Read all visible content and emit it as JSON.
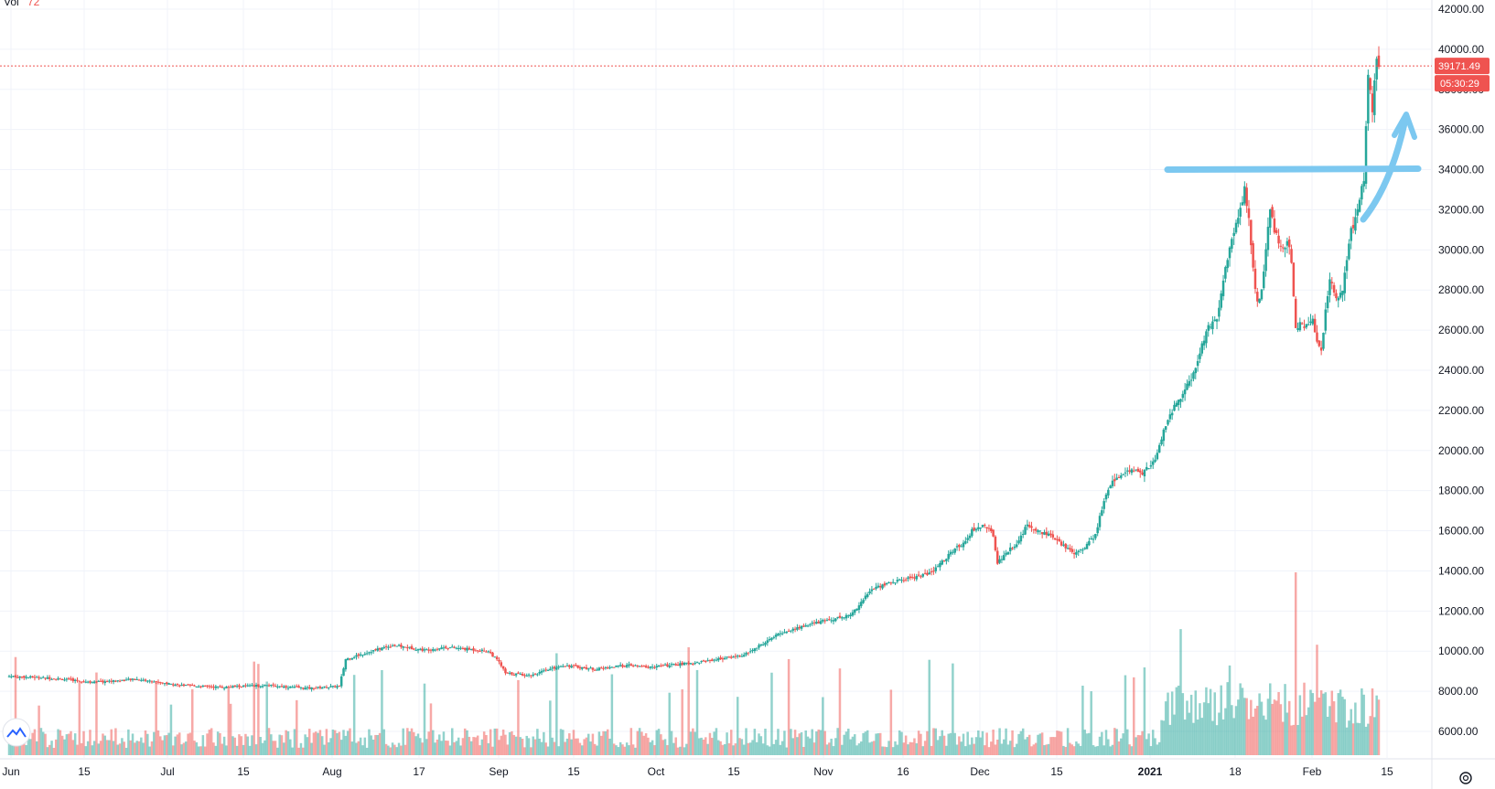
{
  "header": {
    "vol_label": "Vol",
    "vol_value": "72"
  },
  "last_price": {
    "price": "39171.49",
    "countdown": "05:30:29",
    "value": 39171.49
  },
  "colors": {
    "up": "#26a69a",
    "down": "#ef5350",
    "grid": "#f0f3fa",
    "annotation": "#7cc8f0",
    "price_line": "#ef5350"
  },
  "x_ticks": [
    "Jun",
    "15",
    "Jul",
    "15",
    "Aug",
    "17",
    "Sep",
    "15",
    "Oct",
    "15",
    "Nov",
    "16",
    "Dec",
    "15",
    "2021",
    "18",
    "Feb",
    "15"
  ],
  "chart_data": {
    "type": "candlestick",
    "y_ticks": [
      "42000.00",
      "40000.00",
      "38000.00",
      "36000.00",
      "34000.00",
      "32000.00",
      "30000.00",
      "28000.00",
      "26000.00",
      "24000.00",
      "22000.00",
      "20000.00",
      "18000.00",
      "16000.00",
      "14000.00",
      "12000.00",
      "10000.00",
      "8000.00",
      "6000.00"
    ],
    "ylim": [
      5000,
      42500
    ],
    "x_range": [
      "Jun",
      "15"
    ],
    "grid": true,
    "close_keypoints": [
      [
        0,
        8750
      ],
      [
        20,
        8650
      ],
      [
        40,
        8450
      ],
      [
        60,
        8600
      ],
      [
        80,
        8300
      ],
      [
        100,
        8200
      ],
      [
        120,
        8300
      ],
      [
        140,
        8150
      ],
      [
        155,
        8250
      ],
      [
        158,
        9600
      ],
      [
        170,
        10000
      ],
      [
        180,
        10300
      ],
      [
        195,
        10050
      ],
      [
        205,
        10200
      ],
      [
        215,
        10100
      ],
      [
        225,
        10000
      ],
      [
        230,
        9450
      ],
      [
        233,
        8900
      ],
      [
        245,
        8800
      ],
      [
        260,
        9300
      ],
      [
        275,
        9100
      ],
      [
        290,
        9300
      ],
      [
        300,
        9200
      ],
      [
        320,
        9400
      ],
      [
        345,
        9800
      ],
      [
        362,
        10900
      ],
      [
        378,
        11400
      ],
      [
        395,
        11800
      ],
      [
        405,
        13100
      ],
      [
        413,
        13400
      ],
      [
        433,
        13900
      ],
      [
        442,
        14900
      ],
      [
        448,
        15400
      ],
      [
        452,
        16000
      ],
      [
        458,
        16300
      ],
      [
        462,
        15800
      ],
      [
        464,
        14400
      ],
      [
        468,
        14900
      ],
      [
        474,
        15500
      ],
      [
        478,
        16300
      ],
      [
        483,
        16000
      ],
      [
        488,
        15800
      ],
      [
        493,
        15400
      ],
      [
        500,
        14900
      ],
      [
        505,
        15200
      ],
      [
        510,
        15800
      ],
      [
        514,
        17500
      ],
      [
        518,
        18500
      ],
      [
        522,
        18800
      ],
      [
        528,
        19000
      ],
      [
        532,
        18900
      ],
      [
        538,
        19500
      ],
      [
        542,
        21000
      ],
      [
        546,
        22000
      ],
      [
        552,
        23000
      ],
      [
        557,
        24000
      ],
      [
        562,
        26000
      ],
      [
        567,
        26500
      ],
      [
        571,
        29000
      ],
      [
        575,
        31000
      ],
      [
        578,
        32000
      ],
      [
        580,
        33000
      ],
      [
        582,
        31500
      ],
      [
        584,
        29000
      ],
      [
        586,
        27300
      ],
      [
        588,
        28000
      ],
      [
        590,
        30000
      ],
      [
        592,
        32000
      ],
      [
        594,
        31000
      ],
      [
        596,
        30500
      ],
      [
        598,
        30000
      ],
      [
        600,
        30500
      ],
      [
        602,
        29500
      ],
      [
        604,
        26000
      ],
      [
        606,
        26500
      ],
      [
        608,
        26000
      ],
      [
        610,
        26300
      ],
      [
        612,
        26500
      ],
      [
        614,
        25500
      ],
      [
        616,
        25000
      ],
      [
        618,
        27000
      ],
      [
        620,
        28500
      ],
      [
        622,
        28000
      ],
      [
        624,
        27500
      ],
      [
        626,
        28000
      ],
      [
        628,
        29500
      ],
      [
        630,
        31000
      ],
      [
        632,
        31500
      ],
      [
        634,
        32500
      ],
      [
        636,
        33500
      ],
      [
        638,
        38500
      ],
      [
        640,
        37000
      ],
      [
        642,
        39500
      ],
      [
        643,
        39171
      ]
    ],
    "volume_scale": [
      "relative"
    ],
    "annotation": {
      "type": "horizontal-line-with-arrow",
      "level": 34000
    }
  }
}
